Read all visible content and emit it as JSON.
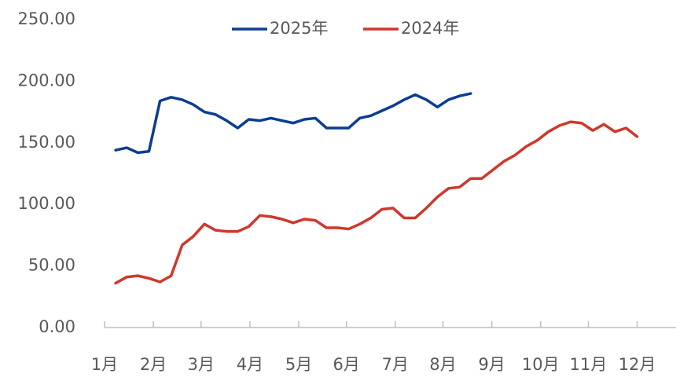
{
  "chart_data": {
    "type": "line",
    "xlim": [
      0,
      51.5
    ],
    "xticks": [
      {
        "value": 0,
        "label": "1月"
      },
      {
        "value": 4.4,
        "label": "2月"
      },
      {
        "value": 8.7,
        "label": "3月"
      },
      {
        "value": 13.1,
        "label": "4月"
      },
      {
        "value": 17.5,
        "label": "5月"
      },
      {
        "value": 21.8,
        "label": "6月"
      },
      {
        "value": 26.2,
        "label": "7月"
      },
      {
        "value": 30.5,
        "label": "8月"
      },
      {
        "value": 34.9,
        "label": "9月"
      },
      {
        "value": 39.3,
        "label": "10月"
      },
      {
        "value": 43.6,
        "label": "11月"
      },
      {
        "value": 48,
        "label": "12月"
      }
    ],
    "ylim": [
      0,
      250
    ],
    "yticks": [
      {
        "value": 0,
        "label": "0.00"
      },
      {
        "value": 50,
        "label": "50.00"
      },
      {
        "value": 100,
        "label": "100.00"
      },
      {
        "value": 150,
        "label": "150.00"
      },
      {
        "value": 200,
        "label": "200.00"
      },
      {
        "value": 250,
        "label": "250.00"
      }
    ],
    "legend": "top",
    "series": [
      {
        "name": "2025年",
        "color": "#0b3d91",
        "x": [
          1,
          2,
          3,
          4,
          5,
          6,
          7,
          8,
          9,
          10,
          11,
          12,
          13,
          14,
          15,
          16,
          17,
          18,
          19,
          20,
          21,
          22,
          23,
          24,
          25,
          26,
          27,
          28,
          29,
          30,
          31,
          32,
          33
        ],
        "values": [
          144,
          146,
          142,
          143,
          184,
          187,
          185,
          181,
          175,
          173,
          168,
          162,
          169,
          168,
          170,
          168,
          166,
          169,
          170,
          162,
          162,
          162,
          170,
          172,
          176,
          180,
          185,
          189,
          185,
          179,
          185,
          188,
          190
        ]
      },
      {
        "name": "2024年",
        "color": "#d0372b",
        "x": [
          1,
          2,
          3,
          4,
          5,
          6,
          7,
          8,
          9,
          10,
          11,
          12,
          13,
          14,
          15,
          16,
          17,
          18,
          19,
          20,
          21,
          22,
          23,
          24,
          25,
          26,
          27,
          28,
          29,
          30,
          31,
          32,
          33,
          34,
          35,
          36,
          37,
          38,
          39,
          40,
          41,
          42,
          43,
          44,
          45,
          46,
          47,
          48
        ],
        "values": [
          36,
          41,
          42,
          40,
          37,
          42,
          67,
          74,
          84,
          79,
          78,
          78,
          82,
          91,
          90,
          88,
          85,
          88,
          87,
          81,
          81,
          80,
          84,
          89,
          96,
          97,
          89,
          89,
          97,
          106,
          113,
          114,
          121,
          121,
          128,
          135,
          140,
          147,
          152,
          159,
          164,
          167,
          166,
          160,
          165,
          159,
          162,
          155
        ]
      }
    ]
  }
}
